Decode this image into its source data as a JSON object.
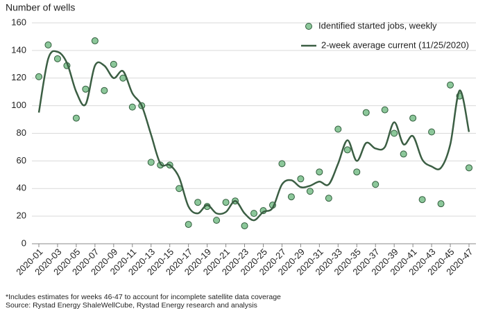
{
  "chart_data": {
    "type": "line",
    "y_label": "Number of wells",
    "categories": [
      "2020-01",
      null,
      "2020-03",
      null,
      "2020-05",
      null,
      "2020-07",
      null,
      "2020-09",
      null,
      "2020-11",
      null,
      "2020-13",
      null,
      "2020-15",
      null,
      "2020-17",
      null,
      "2020-19",
      null,
      "2020-21",
      null,
      "2020-23",
      null,
      "2020-25",
      null,
      "2020-27",
      null,
      "2020-29",
      null,
      "2020-31",
      null,
      "2020-33",
      null,
      "2020-35",
      null,
      "2020-37",
      null,
      "2020-39",
      null,
      "2020-41",
      null,
      "2020-43",
      null,
      "2020-45",
      null,
      "2020-47"
    ],
    "series": [
      {
        "name": "Identified started jobs, weekly",
        "type": "scatter",
        "color": "#8cc79a",
        "edge_color": "#2f5c3b",
        "values": [
          121,
          144,
          134,
          129,
          91,
          112,
          147,
          111,
          130,
          120,
          99,
          100,
          59,
          57,
          57,
          40,
          14,
          30,
          27,
          17,
          30,
          31,
          13,
          22,
          24,
          28,
          58,
          34,
          47,
          38,
          52,
          33,
          83,
          68,
          52,
          95,
          43,
          97,
          80,
          65,
          91,
          32,
          81,
          29,
          115,
          107,
          55
        ]
      },
      {
        "name": "2-week average current (11/25/2020)",
        "type": "line",
        "color": "#3b5e43",
        "values": [
          95,
          134,
          139,
          131,
          110,
          101,
          129,
          129,
          120,
          125,
          109,
          100,
          79,
          58,
          57,
          48,
          27,
          22,
          28,
          22,
          23,
          31,
          22,
          17,
          23,
          26,
          43,
          46,
          41,
          42,
          45,
          43,
          58,
          75,
          60,
          73,
          69,
          70,
          88,
          72,
          78,
          61,
          56,
          55,
          72,
          111,
          81
        ]
      }
    ],
    "ylim": [
      0,
      160
    ],
    "yticks": [
      0,
      20,
      40,
      60,
      80,
      100,
      120,
      140,
      160
    ],
    "grid": true,
    "legend": "upper right",
    "notes": [
      "*Includes estimates for weeks 46-47 to account for incomplete satellite data coverage",
      "Source: Rystad Energy ShaleWellCube, Rystad Energy research and analysis"
    ]
  }
}
